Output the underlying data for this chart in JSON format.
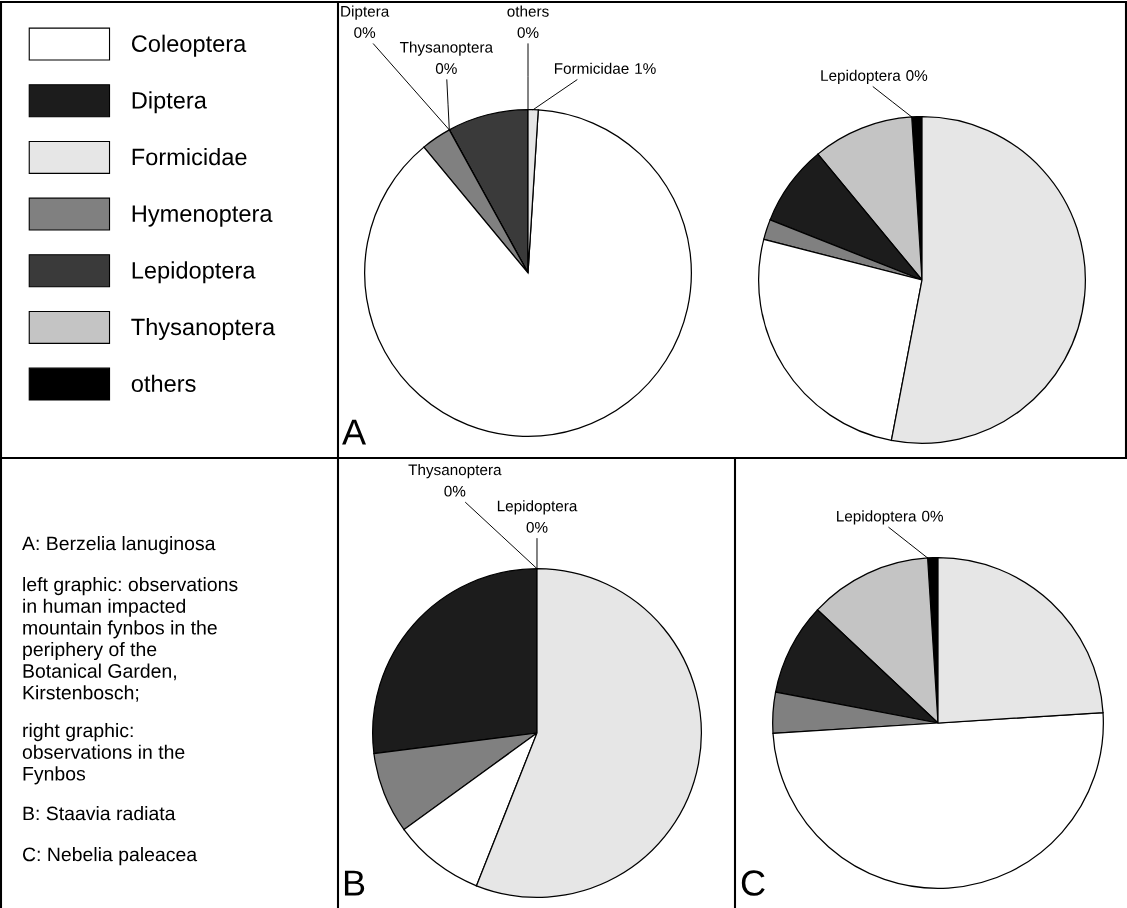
{
  "chart_data": [
    {
      "type": "pie",
      "title": "A",
      "legend": "left",
      "categories": [
        "others",
        "Lepidoptera",
        "Thysanoptera",
        "Diptera",
        "Hymenoptera",
        "Coleoptera",
        "Formicidae"
      ],
      "values": [
        0,
        8,
        0,
        0,
        3,
        88,
        1
      ],
      "colors": [
        "#000000",
        "#3a3a3a",
        "#c4c4c4",
        "#1c1c1c",
        "#808080",
        "#ffffff",
        "#e6e6e6"
      ],
      "value_labels": [
        "0%",
        null,
        "0%",
        "0%",
        null,
        null,
        "1%"
      ]
    },
    {
      "type": "pie",
      "categories": [
        null,
        "Lepidoptera",
        null,
        null,
        null,
        null,
        null
      ],
      "values": [
        1,
        0,
        10,
        8,
        2,
        26,
        53
      ],
      "colors": [
        "#000000",
        "#3a3a3a",
        "#c4c4c4",
        "#1c1c1c",
        "#808080",
        "#ffffff",
        "#e6e6e6"
      ],
      "value_labels": [
        null,
        "0%",
        null,
        null,
        null,
        null,
        null
      ]
    },
    {
      "type": "other",
      "annotations": [
        "A: Berzelia lanuginosa",
        "left graphic: observations\nin human impacted\nmountain fynbos in the\nperiphery of the\nBotanical Garden,\nKirstenbosch;",
        "right graphic:\nobservations in the\nFynbos",
        "B: Staavia radiata",
        "C: Nebelia paleacea"
      ]
    },
    {
      "type": "pie",
      "title": "B",
      "categories": [
        null,
        "Lepidoptera",
        "Thysanoptera",
        null,
        null,
        null,
        null
      ],
      "values": [
        0,
        0,
        0,
        27,
        8,
        9,
        56
      ],
      "colors": [
        "#000000",
        "#3a3a3a",
        "#c4c4c4",
        "#1c1c1c",
        "#808080",
        "#ffffff",
        "#e6e6e6"
      ],
      "value_labels": [
        null,
        "0%",
        "0%",
        null,
        null,
        null,
        null
      ]
    },
    {
      "type": "pie",
      "title": "C",
      "categories": [
        null,
        "Lepidoptera",
        null,
        null,
        null,
        null,
        null
      ],
      "values": [
        1,
        0,
        12,
        9,
        4,
        50,
        24
      ],
      "colors": [
        "#000000",
        "#3a3a3a",
        "#c4c4c4",
        "#1c1c1c",
        "#808080",
        "#ffffff",
        "#e6e6e6"
      ],
      "value_labels": [
        null,
        "0%",
        null,
        null,
        null,
        null,
        null
      ]
    }
  ]
}
